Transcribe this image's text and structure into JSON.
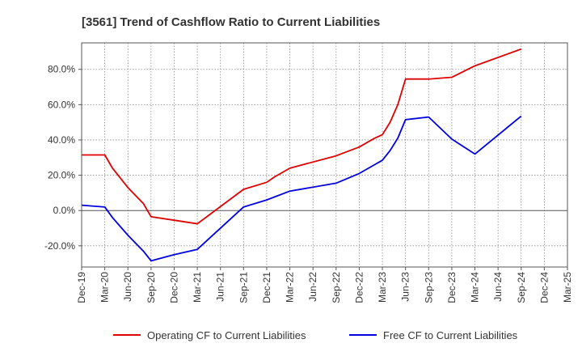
{
  "chart_data": {
    "type": "line",
    "title": "[3561]  Trend of Cashflow Ratio to Current Liabilities",
    "x_ticks": [
      "Dec-19",
      "Mar-20",
      "Jun-20",
      "Sep-20",
      "Dec-20",
      "Mar-21",
      "Jun-21",
      "Sep-21",
      "Dec-21",
      "Mar-22",
      "Jun-22",
      "Sep-22",
      "Dec-22",
      "Mar-23",
      "Jun-23",
      "Sep-23",
      "Dec-23",
      "Mar-24",
      "Jun-24",
      "Sep-24",
      "Dec-24",
      "Mar-25"
    ],
    "y_ticks": [
      -20,
      0,
      20,
      40,
      60,
      80
    ],
    "y_tick_labels": [
      "-20.0%",
      "0.0%",
      "20.0%",
      "40.0%",
      "60.0%",
      "80.0%"
    ],
    "ylim": [
      -32,
      95
    ],
    "grid": true,
    "legend_position": "bottom",
    "series": [
      {
        "name": "Operating CF to Current Liabilities",
        "color": "#e00000",
        "points": [
          [
            "Dec-19",
            31.5
          ],
          [
            "Mar-20",
            31.5
          ],
          [
            "Apr-20",
            24
          ],
          [
            "Jun-20",
            13
          ],
          [
            "Aug-20",
            4
          ],
          [
            "Sep-20",
            -3.5
          ],
          [
            "Dec-20",
            -5.5
          ],
          [
            "Mar-21",
            -7.5
          ],
          [
            "Sep-21",
            12
          ],
          [
            "Dec-21",
            16
          ],
          [
            "Jan-22",
            19
          ],
          [
            "Mar-22",
            24
          ],
          [
            "Sep-22",
            31
          ],
          [
            "Dec-22",
            36
          ],
          [
            "Feb-23",
            41
          ],
          [
            "Mar-23",
            43
          ],
          [
            "Apr-23",
            50
          ],
          [
            "May-23",
            60
          ],
          [
            "Jun-23",
            74.5
          ],
          [
            "Sep-23",
            74.5
          ],
          [
            "Dec-23",
            75.5
          ],
          [
            "Mar-24",
            82
          ],
          [
            "Sep-24",
            91.5
          ]
        ]
      },
      {
        "name": "Free CF to Current Liabilities",
        "color": "#0000e0",
        "points": [
          [
            "Dec-19",
            3
          ],
          [
            "Mar-20",
            2
          ],
          [
            "Apr-20",
            -4
          ],
          [
            "Jun-20",
            -14
          ],
          [
            "Aug-20",
            -23
          ],
          [
            "Sep-20",
            -28.5
          ],
          [
            "Dec-20",
            -25
          ],
          [
            "Mar-21",
            -22
          ],
          [
            "Sep-21",
            2
          ],
          [
            "Dec-21",
            6
          ],
          [
            "Mar-22",
            11
          ],
          [
            "Sep-22",
            15.5
          ],
          [
            "Dec-22",
            21
          ],
          [
            "Feb-23",
            26
          ],
          [
            "Mar-23",
            28.5
          ],
          [
            "Apr-23",
            34
          ],
          [
            "May-23",
            41
          ],
          [
            "Jun-23",
            51.5
          ],
          [
            "Sep-23",
            53
          ],
          [
            "Dec-23",
            40.5
          ],
          [
            "Mar-24",
            32
          ],
          [
            "Sep-24",
            53.5
          ]
        ]
      }
    ]
  }
}
